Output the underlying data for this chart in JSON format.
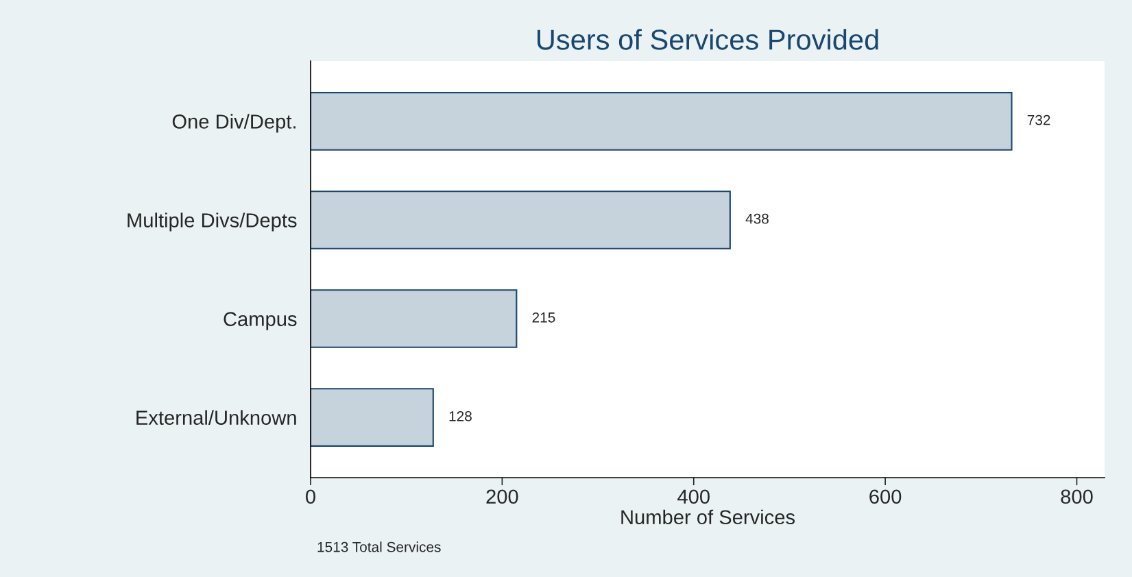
{
  "chart_data": {
    "type": "bar",
    "orientation": "horizontal",
    "title": "Users of Services Provided",
    "xlabel": "Number of Services",
    "categories": [
      "One Div/Dept.",
      "Multiple Divs/Depts",
      "Campus",
      "External/Unknown"
    ],
    "values": [
      732,
      438,
      215,
      128
    ],
    "color": "#c6d2dc",
    "data_labels": true,
    "xlim": [
      0,
      829
    ],
    "xticks": [
      0,
      200,
      400,
      600,
      800
    ],
    "grid": false,
    "legend": false,
    "annotations": [
      "1513 Total Services"
    ]
  }
}
